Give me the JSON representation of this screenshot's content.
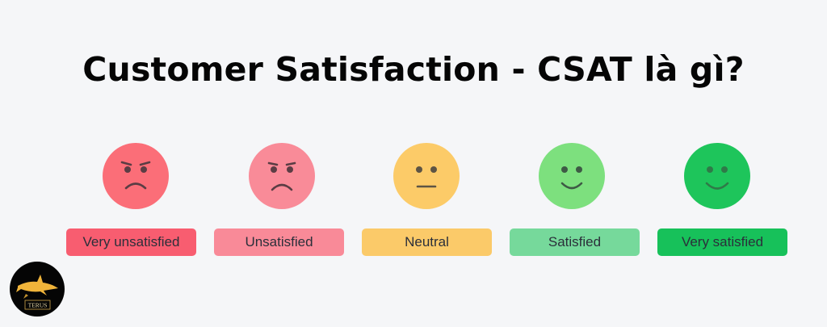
{
  "title": "Customer Satisfaction - CSAT là gì?",
  "scale": [
    {
      "label": "Very unsatisfied",
      "mood": "very-unsatisfied",
      "face_color": "#fb6e78",
      "label_color": "#f85d70",
      "feature_color": "#5b3d44"
    },
    {
      "label": "Unsatisfied",
      "mood": "unsatisfied",
      "face_color": "#f98b98",
      "label_color": "#f98a98",
      "feature_color": "#5b3d44"
    },
    {
      "label": "Neutral",
      "mood": "neutral",
      "face_color": "#fccb68",
      "label_color": "#fbca69",
      "feature_color": "#5d5444"
    },
    {
      "label": "Satisfied",
      "mood": "satisfied",
      "face_color": "#7de07e",
      "label_color": "#76d99b",
      "feature_color": "#3e5a45"
    },
    {
      "label": "Very satisfied",
      "mood": "very-satisfied",
      "face_color": "#1ec55b",
      "label_color": "#17c15a",
      "feature_color": "#2f7a48"
    }
  ],
  "logo": {
    "text": "TERUS",
    "icon": "shark-logo-icon",
    "accent": "#f0b43a"
  }
}
